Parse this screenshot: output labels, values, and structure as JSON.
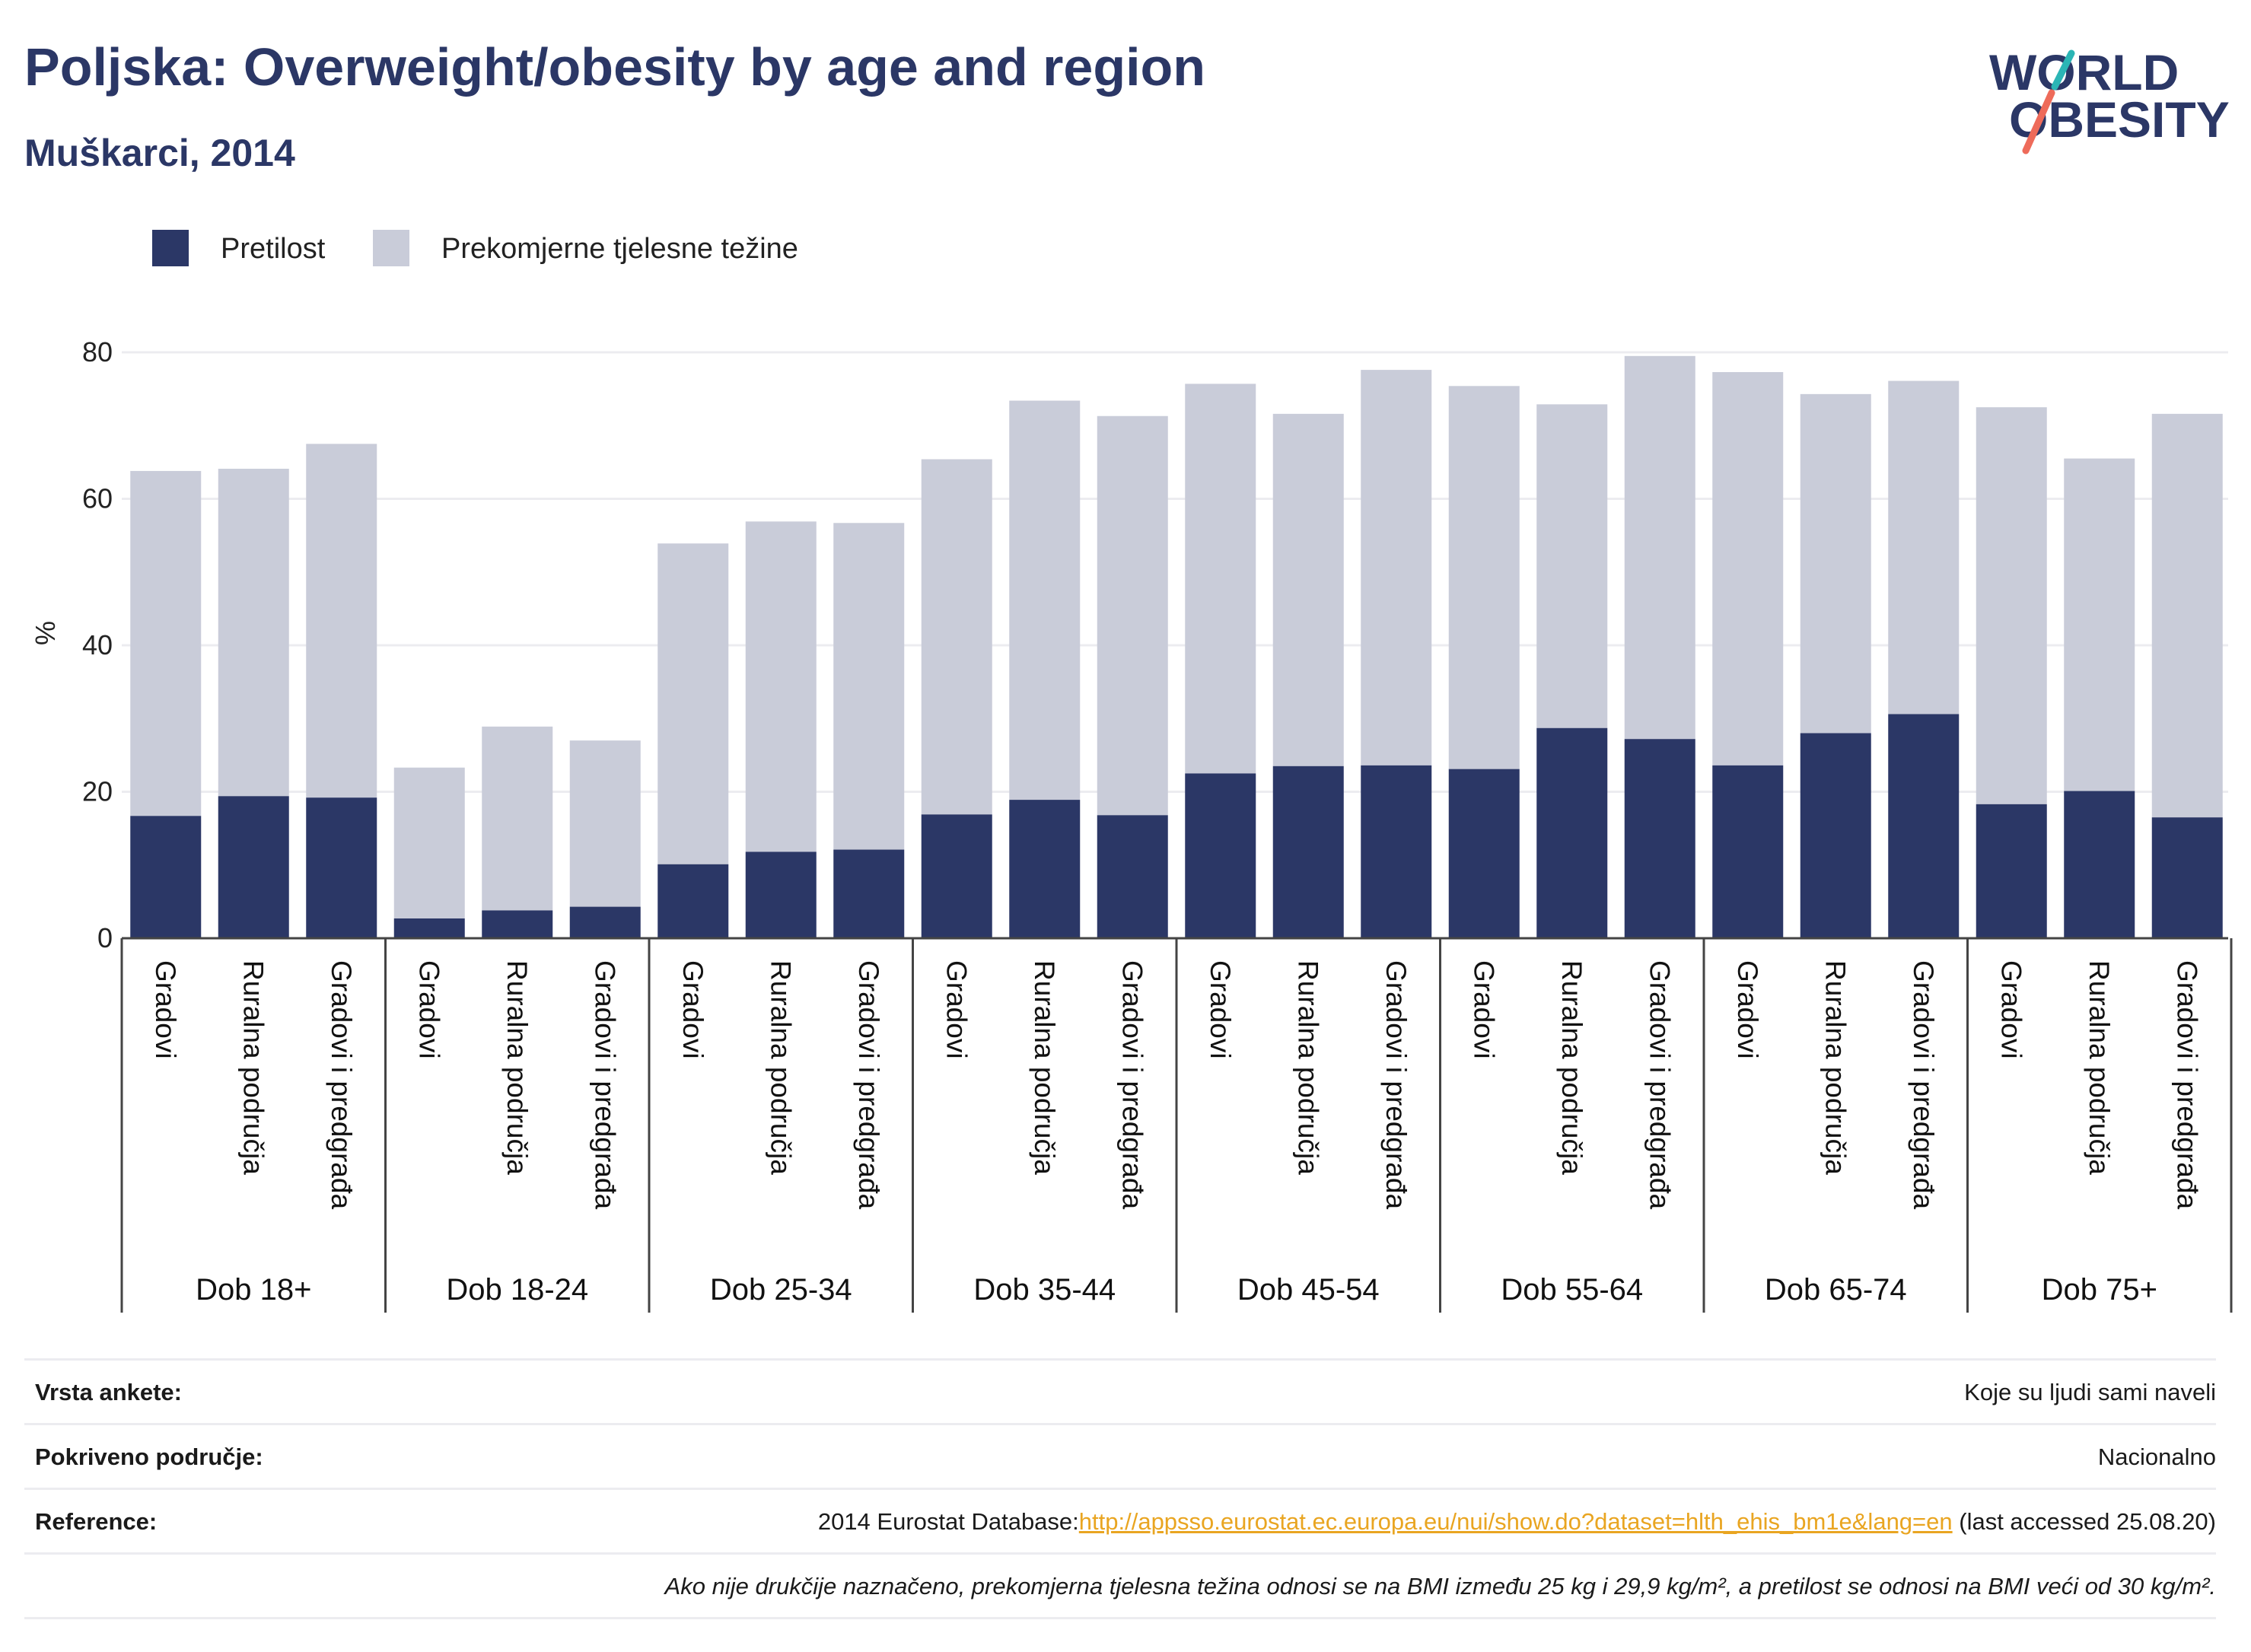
{
  "header": {
    "title": "Poljska: Overweight/obesity by age and region",
    "subtitle": "Muškarci, 2014"
  },
  "logo": {
    "line1": "WORLD",
    "line2": "OBESITY"
  },
  "colors": {
    "obesity": "#2b3766",
    "overweight": "#c9ccd9",
    "accent": "#2b3766",
    "link": "#e9a521",
    "logo_teal": "#2bb5b5",
    "logo_coral": "#ee6b5a"
  },
  "legend": {
    "items": [
      {
        "label": "Pretilost",
        "color": "#2b3766"
      },
      {
        "label": "Prekomjerne tjelesne težine",
        "color": "#c9ccd9"
      }
    ]
  },
  "chart_data": {
    "type": "bar",
    "stacked": true,
    "ylabel": "%",
    "ylim": [
      0,
      80
    ],
    "yticks": [
      0,
      20,
      40,
      60,
      80
    ],
    "grid": true,
    "legend_position": "top-left",
    "groups": [
      {
        "label": "Dob 18+",
        "categories": [
          "Gradovi",
          "Ruralna područja",
          "Gradovi i predgrađa"
        ],
        "obesity": [
          16.7,
          19.4,
          19.2
        ],
        "total": [
          63.8,
          64.1,
          67.5
        ]
      },
      {
        "label": "Dob 18-24",
        "categories": [
          "Gradovi",
          "Ruralna područja",
          "Gradovi i predgrađa"
        ],
        "obesity": [
          2.7,
          3.8,
          4.3
        ],
        "total": [
          23.3,
          28.9,
          27.0
        ]
      },
      {
        "label": "Dob 25-34",
        "categories": [
          "Gradovi",
          "Ruralna područja",
          "Gradovi i predgrađa"
        ],
        "obesity": [
          10.1,
          11.8,
          12.1
        ],
        "total": [
          53.9,
          56.9,
          56.7
        ]
      },
      {
        "label": "Dob 35-44",
        "categories": [
          "Gradovi",
          "Ruralna područja",
          "Gradovi i predgrađa"
        ],
        "obesity": [
          16.9,
          18.9,
          16.8
        ],
        "total": [
          65.4,
          73.4,
          71.3
        ]
      },
      {
        "label": "Dob 45-54",
        "categories": [
          "Gradovi",
          "Ruralna područja",
          "Gradovi i predgrađa"
        ],
        "obesity": [
          22.5,
          23.5,
          23.6
        ],
        "total": [
          75.7,
          71.6,
          77.6
        ]
      },
      {
        "label": "Dob 55-64",
        "categories": [
          "Gradovi",
          "Ruralna područja",
          "Gradovi i predgrađa"
        ],
        "obesity": [
          23.1,
          28.7,
          27.2
        ],
        "total": [
          75.4,
          72.9,
          79.5
        ]
      },
      {
        "label": "Dob 65-74",
        "categories": [
          "Gradovi",
          "Ruralna područja",
          "Gradovi i predgrađa"
        ],
        "obesity": [
          23.6,
          28.0,
          30.6
        ],
        "total": [
          77.3,
          74.3,
          76.1
        ]
      },
      {
        "label": "Dob 75+",
        "categories": [
          "Gradovi",
          "Ruralna područja",
          "Gradovi i predgrađa"
        ],
        "obesity": [
          18.3,
          20.1,
          16.5
        ],
        "total": [
          72.5,
          65.5,
          71.6
        ]
      }
    ]
  },
  "info": {
    "survey_type": {
      "label": "Vrsta ankete:",
      "value": "Koje su ljudi sami naveli"
    },
    "coverage": {
      "label": "Pokriveno područje:",
      "value": "Nacionalno"
    },
    "reference": {
      "label": "Reference:",
      "prefix": "2014 Eurostat Database:",
      "link": "http://appsso.eurostat.ec.europa.eu/nui/show.do?dataset=hlth_ehis_bm1e&lang=en",
      "suffix": " (last accessed 25.08.20)"
    },
    "note": "Ako nije drukčije naznačeno, prekomjerna tjelesna težina odnosi se na BMI između 25 kg i 29,9 kg/m², a pretilost se odnosi na BMI veći od 30 kg/m²."
  }
}
